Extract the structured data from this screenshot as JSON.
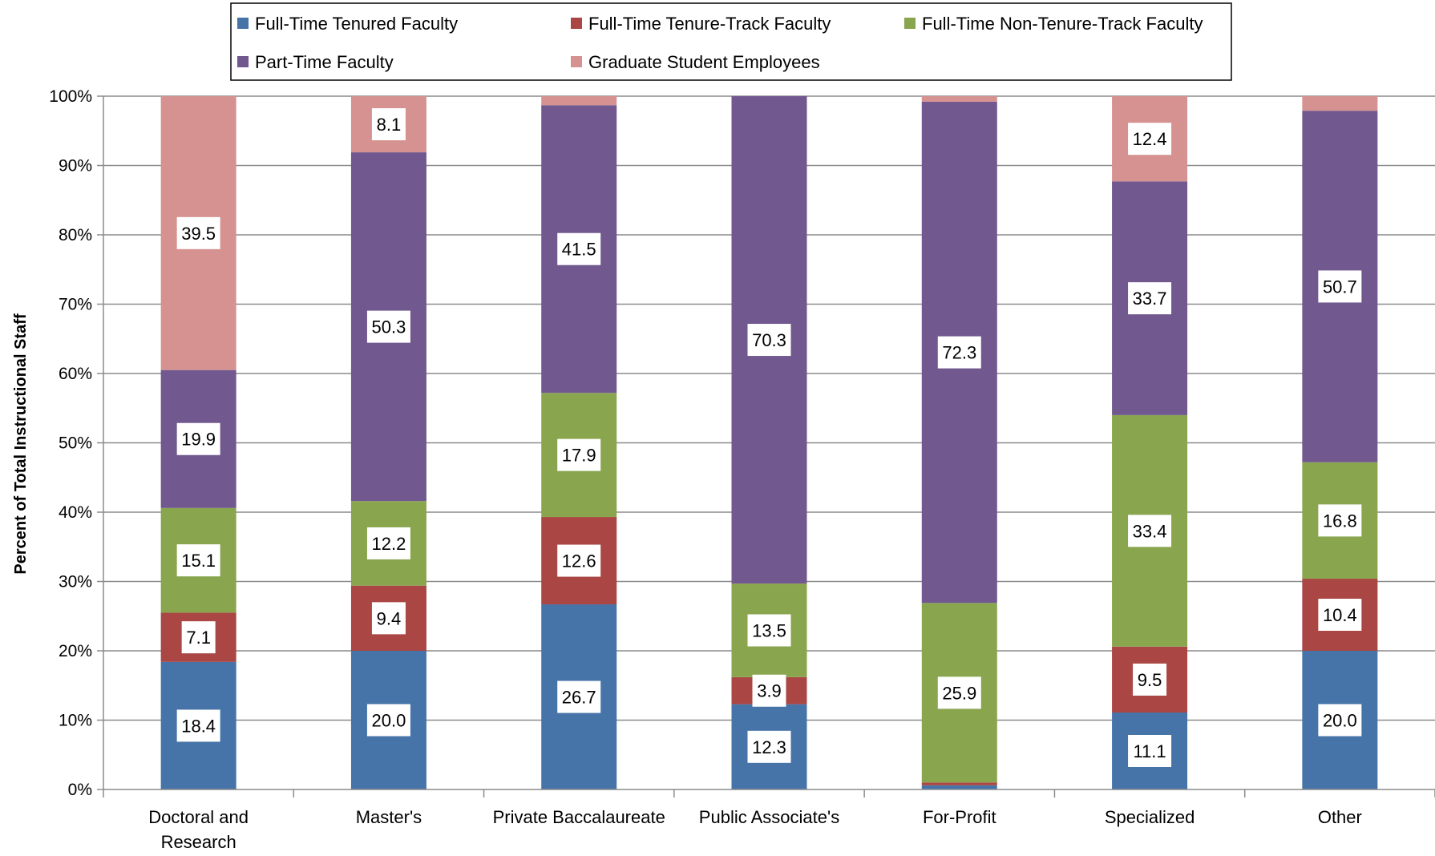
{
  "chart_data": {
    "type": "bar",
    "stacked": true,
    "percent_stacked": true,
    "ylabel": "Percent of Total Instructional Staff",
    "xlabel": "",
    "ylim": [
      0,
      100
    ],
    "yticks": [
      "0%",
      "10%",
      "20%",
      "30%",
      "40%",
      "50%",
      "60%",
      "70%",
      "80%",
      "90%",
      "100%"
    ],
    "grid": true,
    "legend_position": "top",
    "categories": [
      "Doctoral and Research",
      "Master's",
      "Private Baccalaureate",
      "Public Associate's",
      "For-Profit",
      "Specialized",
      "Other"
    ],
    "series": [
      {
        "name": "Full-Time Tenured Faculty",
        "color": "#4674a8",
        "values": [
          18.4,
          20.0,
          26.7,
          12.3,
          0.6,
          11.1,
          20.0
        ],
        "labels": [
          "18.4",
          "20.0",
          "26.7",
          "12.3",
          "",
          "11.1",
          "20.0"
        ]
      },
      {
        "name": "Full-Time Tenure-Track Faculty",
        "color": "#aa4643",
        "values": [
          7.1,
          9.4,
          12.6,
          3.9,
          0.4,
          9.5,
          10.4
        ],
        "labels": [
          "7.1",
          "9.4",
          "12.6",
          "3.9",
          "",
          "9.5",
          "10.4"
        ]
      },
      {
        "name": "Full-Time Non-Tenure-Track Faculty",
        "color": "#89a54e",
        "values": [
          15.1,
          12.2,
          17.9,
          13.5,
          25.9,
          33.4,
          16.8
        ],
        "labels": [
          "15.1",
          "12.2",
          "17.9",
          "13.5",
          "25.9",
          "33.4",
          "16.8"
        ]
      },
      {
        "name": "Part-Time Faculty",
        "color": "#71588f",
        "values": [
          19.9,
          50.3,
          41.5,
          70.3,
          72.3,
          33.7,
          50.7
        ],
        "labels": [
          "19.9",
          "50.3",
          "41.5",
          "70.3",
          "72.3",
          "33.7",
          "50.7"
        ]
      },
      {
        "name": "Graduate Student Employees",
        "color": "#d59290",
        "values": [
          39.5,
          8.1,
          1.6,
          0.0,
          0.9,
          12.4,
          2.1
        ],
        "labels": [
          "39.5",
          "8.1",
          "",
          "",
          "",
          "12.4",
          ""
        ]
      }
    ]
  }
}
